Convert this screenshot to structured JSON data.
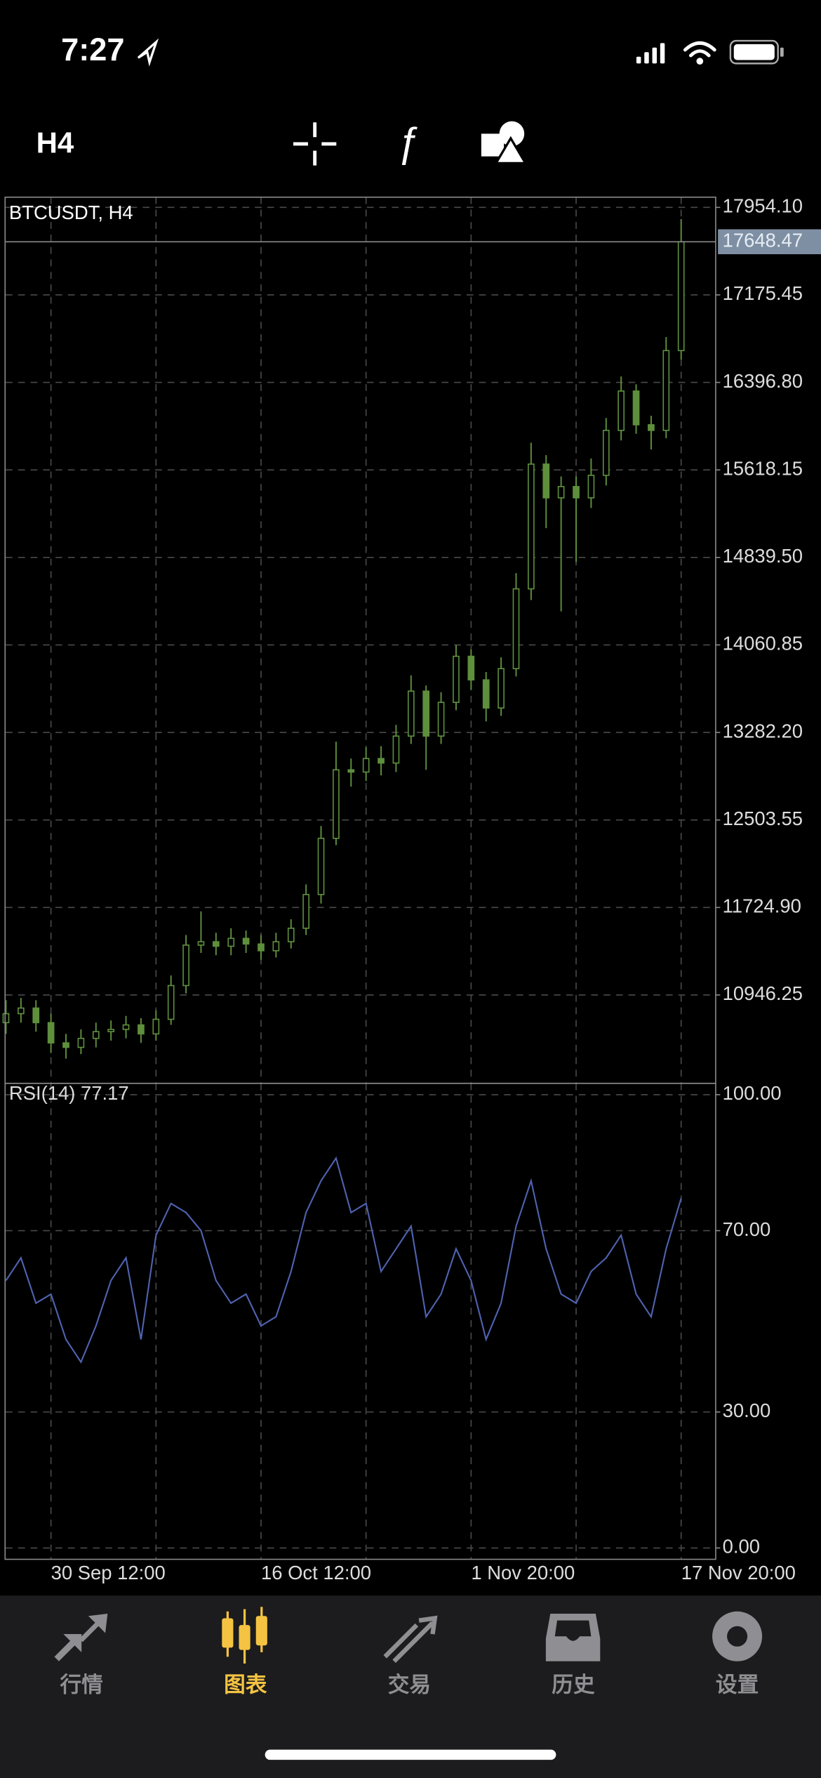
{
  "status_bar": {
    "time": "7:27"
  },
  "toolbar": {
    "timeframe": "H4"
  },
  "chart_data": [
    {
      "type": "candlestick",
      "title": "BTCUSDT, H4",
      "categories": [
        null,
        null,
        null,
        "30 Sep 12:00",
        null,
        null,
        null,
        null,
        null,
        null,
        null,
        null,
        null,
        null,
        null,
        null,
        null,
        "16 Oct 12:00",
        null,
        null,
        null,
        null,
        null,
        null,
        null,
        null,
        null,
        null,
        null,
        null,
        null,
        "1 Nov 20:00",
        null,
        null,
        null,
        null,
        null,
        null,
        null,
        null,
        null,
        null,
        null,
        null,
        null,
        "17 Nov 20:00"
      ],
      "open": [
        10700,
        10780,
        10830,
        10700,
        10520,
        10480,
        10560,
        10620,
        10640,
        10680,
        10600,
        10730,
        11030,
        11390,
        11420,
        11380,
        11450,
        11400,
        11340,
        11420,
        11540,
        11840,
        12340,
        12950,
        12930,
        13050,
        13010,
        13250,
        13650,
        13250,
        13550,
        13960,
        13750,
        13500,
        13850,
        14560,
        15670,
        15370,
        15470,
        15370,
        15570,
        15970,
        16320,
        16020,
        15970,
        16680
      ],
      "high": [
        10900,
        10920,
        10900,
        10780,
        10600,
        10640,
        10700,
        10720,
        10760,
        10740,
        10810,
        11120,
        11480,
        11690,
        11500,
        11540,
        11520,
        11480,
        11500,
        11620,
        11930,
        12450,
        13200,
        13050,
        13150,
        13160,
        13350,
        13790,
        13700,
        13640,
        14060,
        14020,
        13820,
        13950,
        14700,
        15860,
        15750,
        15560,
        15560,
        15720,
        16080,
        16450,
        16380,
        16100,
        16800,
        17850
      ],
      "low": [
        10600,
        10700,
        10620,
        10430,
        10380,
        10420,
        10480,
        10540,
        10560,
        10520,
        10540,
        10680,
        10960,
        11320,
        11300,
        11300,
        11320,
        11260,
        11280,
        11360,
        11480,
        11760,
        12280,
        12800,
        12850,
        12900,
        12930,
        13180,
        12950,
        13180,
        13480,
        13660,
        13380,
        13430,
        13780,
        14460,
        15100,
        14360,
        14800,
        15280,
        15480,
        15880,
        15940,
        15800,
        15900,
        16600
      ],
      "close": [
        10780,
        10830,
        10700,
        10520,
        10480,
        10560,
        10620,
        10640,
        10680,
        10600,
        10730,
        11030,
        11390,
        11420,
        11380,
        11450,
        11400,
        11340,
        11420,
        11540,
        11840,
        12340,
        12950,
        12930,
        13050,
        13010,
        13250,
        13650,
        13250,
        13550,
        13960,
        13750,
        13500,
        13850,
        14560,
        15670,
        15370,
        15470,
        15370,
        15570,
        15970,
        16320,
        16020,
        15970,
        16680,
        17648.47
      ],
      "color": "#5e8f3c",
      "current_price": 17648.47,
      "ylim": [
        10160,
        18045
      ],
      "yticks": [
        {
          "value": 10946.25,
          "label": "10946.25"
        },
        {
          "value": 11724.9,
          "label": "11724.90"
        },
        {
          "value": 12503.55,
          "label": "12503.55"
        },
        {
          "value": 13282.2,
          "label": "13282.20"
        },
        {
          "value": 14060.85,
          "label": "14060.85"
        },
        {
          "value": 14839.5,
          "label": "14839.50"
        },
        {
          "value": 15618.15,
          "label": "15618.15"
        },
        {
          "value": 16396.8,
          "label": "16396.80"
        },
        {
          "value": 17175.45,
          "label": "17175.45"
        },
        {
          "value": 17954.1,
          "label": "17954.10"
        }
      ],
      "grid": true
    },
    {
      "type": "line",
      "title": "RSI(14) 77.17",
      "values": [
        59,
        64,
        54,
        56,
        46,
        41,
        49,
        59,
        64,
        46,
        69,
        76,
        74,
        70,
        59,
        54,
        56,
        49,
        51,
        61,
        74,
        81,
        86,
        74,
        76,
        61,
        66,
        71,
        51,
        56,
        66,
        59,
        46,
        54,
        71,
        81,
        66,
        56,
        54,
        61,
        64,
        69,
        56,
        51,
        66,
        77.17
      ],
      "color": "#4f63b0",
      "ylim": [
        -2.5,
        102.5
      ],
      "yticks": [
        {
          "value": 0,
          "label": "0.00"
        },
        {
          "value": 30,
          "label": "30.00"
        },
        {
          "value": 70,
          "label": "70.00"
        },
        {
          "value": 100,
          "label": "100.00"
        }
      ],
      "grid": true
    }
  ],
  "tab_bar": {
    "tabs": [
      "行情",
      "图表",
      "交易",
      "历史",
      "设置"
    ],
    "active": 1,
    "color": "#8e8e93",
    "active_color": "#f5c342"
  }
}
